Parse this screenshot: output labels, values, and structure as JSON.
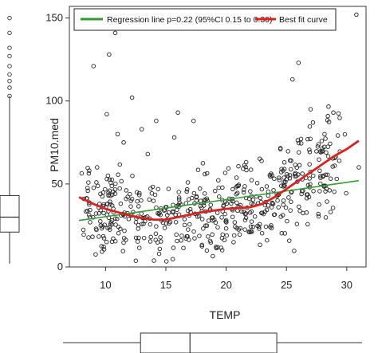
{
  "chart_data": {
    "type": "scatter",
    "xlabel": "TEMP",
    "ylabel": "PM10.med",
    "xlim": [
      7,
      31.6
    ],
    "ylim": [
      0,
      157
    ],
    "x_ticks": [
      "10",
      "15",
      "20",
      "25",
      "30"
    ],
    "y_ticks": [
      "0",
      "50",
      "100",
      "150"
    ],
    "legend": {
      "placement": "top",
      "entries": [
        {
          "label": "Regression line p=0.22 (95%CI 0.15 to 0.30)",
          "color": "#2ea02e"
        },
        {
          "label": "Best fit curve",
          "color": "#e0201b"
        }
      ]
    },
    "lines": [
      {
        "label": "Regression line p=0.22 (95%CI 0.15 to 0.30)",
        "color": "#2ea02e",
        "x": [
          7.8,
          31
        ],
        "y": [
          28,
          52
        ]
      },
      {
        "label": "Best fit curve",
        "color": "#e0201b",
        "x": [
          7.8,
          9,
          10,
          11,
          12,
          13,
          14,
          15,
          16,
          17,
          18,
          19,
          20,
          21,
          22,
          23,
          24,
          25,
          26,
          27,
          28,
          29,
          30,
          31
        ],
        "y": [
          42,
          38,
          35,
          33,
          31,
          29.5,
          28.5,
          28.5,
          30,
          31.5,
          33,
          34,
          35,
          35.5,
          36,
          38,
          42,
          47,
          52,
          57,
          62,
          67,
          71,
          76
        ]
      }
    ],
    "series": [
      {
        "x": [
          9.0,
          9.3,
          10.3,
          10.8,
          10.1,
          11.0,
          11.5,
          13.5,
          14.2,
          15.7,
          16.0,
          24.5,
          26.0,
          25.5,
          27.0,
          27.2,
          30.8,
          28.0,
          29.0,
          12.2,
          13.0,
          9.5,
          10.2,
          8.2,
          31.0,
          8.7,
          9.6,
          11.7,
          12.6,
          17.3
        ],
        "y": [
          121,
          60,
          128,
          141,
          92,
          80,
          75,
          68,
          88,
          78,
          93,
          71,
          123,
          113,
          95,
          87,
          152,
          70,
          61,
          102,
          83,
          38,
          55,
          41,
          60,
          30,
          25,
          41,
          45,
          88
        ]
      }
    ],
    "boxplot_y": {
      "min": 2,
      "q1": 21,
      "median": 30,
      "q3": 43,
      "max": 103,
      "outliers": [
        103,
        108,
        112,
        116,
        121,
        127,
        132,
        141,
        150
      ]
    },
    "boxplot_x": {
      "min": 7.8,
      "q1": 12.9,
      "median": 17.0,
      "q3": 24.2,
      "max": 31.0
    }
  }
}
